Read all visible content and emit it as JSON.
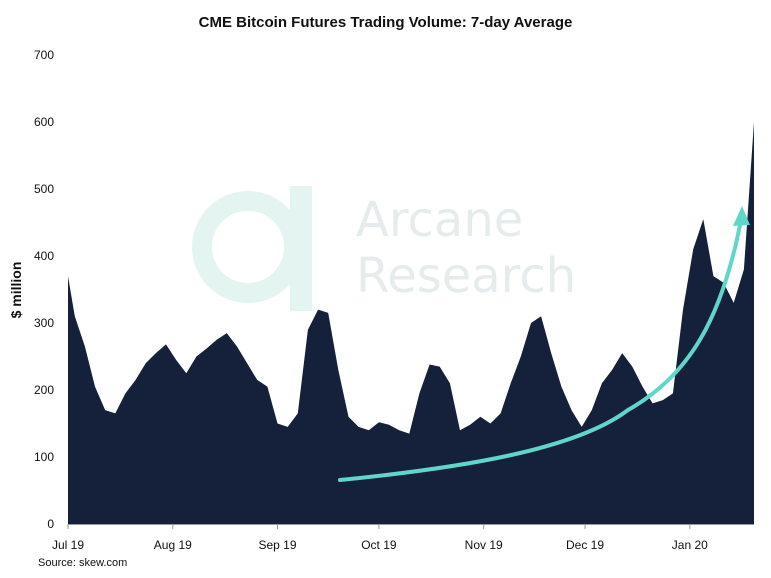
{
  "chart_data": {
    "type": "area",
    "title": "CME Bitcoin Futures Trading Volume: 7-day Average",
    "ylabel": "$ million",
    "xlabel": "",
    "ylim": [
      0,
      700
    ],
    "yticks": [
      0,
      100,
      200,
      300,
      400,
      500,
      600,
      700
    ],
    "xticks": [
      "Jul 19",
      "Aug 19",
      "Sep 19",
      "Oct 19",
      "Nov 19",
      "Dec 19",
      "Jan 20"
    ],
    "grid": false,
    "legend": "none",
    "colors": {
      "area": "#15213a",
      "trend_arrow": "#5fd6c9",
      "watermark": "#e6ecec"
    },
    "series": [
      {
        "x": [
          "2019-07-01",
          "2019-07-03",
          "2019-07-06",
          "2019-07-09",
          "2019-07-12",
          "2019-07-15",
          "2019-07-18",
          "2019-07-21",
          "2019-07-24",
          "2019-07-27",
          "2019-07-30",
          "2019-08-02",
          "2019-08-05",
          "2019-08-08",
          "2019-08-11",
          "2019-08-14",
          "2019-08-17",
          "2019-08-20",
          "2019-08-23",
          "2019-08-26",
          "2019-08-29",
          "2019-09-01",
          "2019-09-04",
          "2019-09-07",
          "2019-09-10",
          "2019-09-13",
          "2019-09-16",
          "2019-09-19",
          "2019-09-22",
          "2019-09-25",
          "2019-09-28",
          "2019-10-01",
          "2019-10-04",
          "2019-10-07",
          "2019-10-10",
          "2019-10-13",
          "2019-10-16",
          "2019-10-19",
          "2019-10-22",
          "2019-10-25",
          "2019-10-28",
          "2019-10-31",
          "2019-11-03",
          "2019-11-06",
          "2019-11-09",
          "2019-11-12",
          "2019-11-15",
          "2019-11-18",
          "2019-11-21",
          "2019-11-24",
          "2019-11-27",
          "2019-11-30",
          "2019-12-03",
          "2019-12-06",
          "2019-12-09",
          "2019-12-12",
          "2019-12-15",
          "2019-12-18",
          "2019-12-21",
          "2019-12-24",
          "2019-12-27",
          "2019-12-30",
          "2020-01-02",
          "2020-01-05",
          "2020-01-08",
          "2020-01-11",
          "2020-01-14",
          "2020-01-17",
          "2020-01-20"
        ],
        "values": [
          370,
          310,
          265,
          205,
          170,
          165,
          195,
          215,
          240,
          255,
          268,
          245,
          225,
          250,
          262,
          275,
          285,
          265,
          240,
          215,
          205,
          150,
          145,
          165,
          290,
          320,
          315,
          230,
          160,
          145,
          140,
          152,
          148,
          140,
          135,
          195,
          238,
          235,
          210,
          140,
          148,
          160,
          150,
          165,
          210,
          250,
          300,
          310,
          255,
          205,
          170,
          145,
          170,
          210,
          230,
          255,
          235,
          205,
          180,
          185,
          195,
          320,
          410,
          455,
          370,
          360,
          330,
          380,
          600
        ]
      }
    ],
    "annotations": [
      {
        "type": "watermark",
        "lines": [
          "Arcane",
          "Research"
        ]
      },
      {
        "type": "trend_arrow",
        "description": "upward curve"
      }
    ]
  },
  "source": "Source: skew.com"
}
